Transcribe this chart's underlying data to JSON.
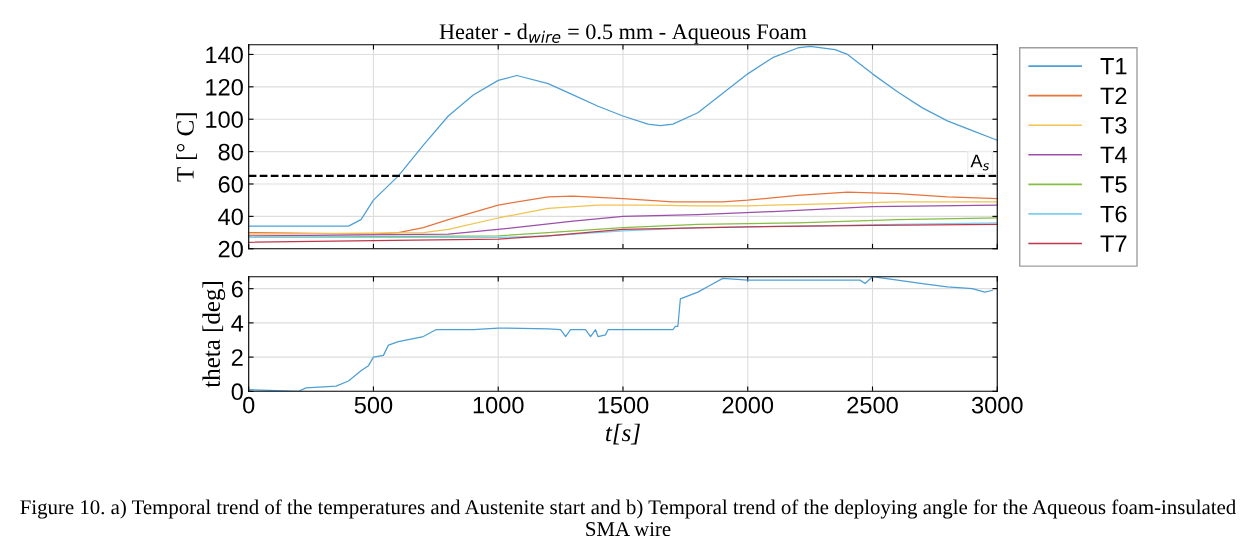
{
  "chart_data": [
    {
      "type": "line",
      "title": "Heater - d$_{wire}$ = 0.5 mm - Aqueous Foam",
      "ylabel": "T [° C]",
      "xlim": [
        0,
        3000
      ],
      "xticks": [
        0,
        500,
        1000,
        1500,
        2000,
        2500,
        3000
      ],
      "ylim": [
        20,
        146
      ],
      "yticks": [
        20,
        40,
        60,
        80,
        100,
        120,
        140
      ],
      "tick_labels": "y",
      "grid": true,
      "legend": "right",
      "line_style": "solid",
      "marker": "none",
      "ref_lines": [
        {
          "axis": "y",
          "value": 65,
          "label": "A$_{s}$",
          "color": "#000000",
          "line_style": "dashed"
        }
      ],
      "series": [
        {
          "name": "T1",
          "color": "#4d9fd6",
          "x": [
            0,
            400,
            450,
            500,
            600,
            700,
            800,
            900,
            1000,
            1075,
            1200,
            1300,
            1400,
            1500,
            1600,
            1650,
            1700,
            1800,
            1900,
            2000,
            2100,
            2200,
            2250,
            2350,
            2400,
            2500,
            2600,
            2700,
            2800,
            2900,
            3000
          ],
          "values": [
            34,
            34,
            38,
            50,
            65,
            84,
            102,
            115,
            124,
            127,
            122,
            115,
            108,
            102,
            97,
            96,
            97,
            104,
            116,
            128,
            138,
            144,
            145,
            143,
            140,
            128,
            117,
            107,
            99,
            93,
            87
          ]
        },
        {
          "name": "T2",
          "color": "#e8743b",
          "x": [
            0,
            500,
            600,
            700,
            800,
            1000,
            1200,
            1300,
            1500,
            1700,
            1900,
            2000,
            2200,
            2400,
            2600,
            2800,
            3000
          ],
          "values": [
            30,
            29,
            30,
            33,
            38,
            47,
            52,
            52.5,
            51,
            49,
            49,
            50,
            53,
            55,
            54,
            52,
            51
          ]
        },
        {
          "name": "T3",
          "color": "#f0c350",
          "x": [
            0,
            700,
            800,
            1000,
            1200,
            1400,
            1600,
            1800,
            2000,
            2400,
            2600,
            3000
          ],
          "values": [
            29,
            30,
            32,
            39,
            45,
            47,
            47,
            46.5,
            46.5,
            48,
            49,
            49
          ]
        },
        {
          "name": "T4",
          "color": "#9b4fab",
          "x": [
            0,
            800,
            1000,
            1300,
            1500,
            1800,
            2100,
            2500,
            3000
          ],
          "values": [
            28,
            29,
            32,
            37,
            40,
            41,
            43,
            46,
            47
          ]
        },
        {
          "name": "T5",
          "color": "#86bd45",
          "x": [
            0,
            1000,
            1200,
            1500,
            1800,
            2200,
            2600,
            3000
          ],
          "values": [
            27,
            28,
            30,
            33,
            35,
            36,
            38,
            39
          ]
        },
        {
          "name": "T6",
          "color": "#7ccff0",
          "x": [
            0,
            1000,
            1200,
            1500,
            1800,
            2200,
            2600,
            3000
          ],
          "values": [
            27,
            27,
            28,
            31,
            33,
            34,
            35,
            36
          ]
        },
        {
          "name": "T7",
          "color": "#c0374c",
          "x": [
            0,
            500,
            1000,
            1200,
            1500,
            2000,
            2500,
            3000
          ],
          "values": [
            24,
            25,
            26,
            28,
            32,
            33.5,
            34.5,
            35
          ]
        }
      ]
    },
    {
      "type": "line",
      "xlabel": "t[s]",
      "ylabel": "theta [deg]",
      "xlim": [
        0,
        3000
      ],
      "xticks": [
        0,
        500,
        1000,
        1500,
        2000,
        2500,
        3000
      ],
      "ylim": [
        0,
        6.7
      ],
      "yticks": [
        0,
        2,
        4,
        6
      ],
      "grid": true,
      "line_style": "solid",
      "marker": "none",
      "annotations": [
        "Figure 10. a) Temporal trend of the temperatures and Austenite start and b) Temporal trend of the deploying angle for the Aqueous foam-insulated SMA wire"
      ],
      "series": [
        {
          "color": "#4d9fd6",
          "x": [
            0,
            200,
            230,
            350,
            400,
            450,
            480,
            500,
            540,
            560,
            600,
            700,
            750,
            900,
            1000,
            1200,
            1250,
            1270,
            1290,
            1350,
            1370,
            1390,
            1400,
            1430,
            1440,
            1700,
            1710,
            1720,
            1730,
            1800,
            1850,
            1900,
            2000,
            2200,
            2450,
            2470,
            2500,
            2600,
            2700,
            2800,
            2900,
            2950,
            2980
          ],
          "values": [
            0.1,
            0,
            0.2,
            0.3,
            0.6,
            1.2,
            1.5,
            2.0,
            2.1,
            2.7,
            2.9,
            3.2,
            3.6,
            3.6,
            3.7,
            3.65,
            3.6,
            3.2,
            3.6,
            3.6,
            3.2,
            3.6,
            3.2,
            3.3,
            3.6,
            3.6,
            3.8,
            3.8,
            5.4,
            5.8,
            6.2,
            6.6,
            6.5,
            6.5,
            6.5,
            6.3,
            6.7,
            6.5,
            6.3,
            6.1,
            6.0,
            5.8,
            5.9
          ]
        }
      ]
    }
  ]
}
